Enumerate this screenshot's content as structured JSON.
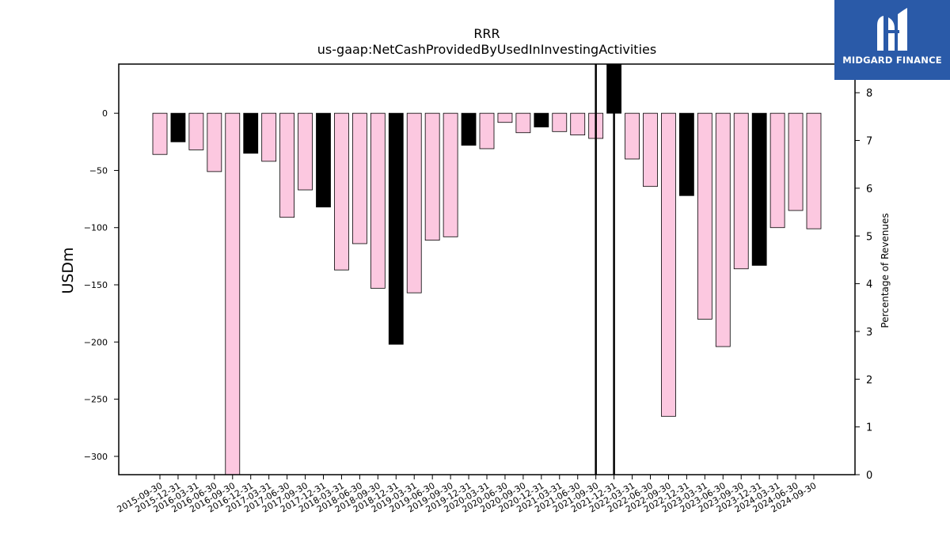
{
  "chart_data": {
    "type": "bar",
    "title": "RRR",
    "subtitle": "us-gaap:NetCashProvidedByUsedInInvestingActivities",
    "ylabel": "USDm",
    "y2label": "Percentage of Revenues",
    "ylim": [
      -316,
      43
    ],
    "y2lim": [
      0,
      8.6
    ],
    "yticks": [
      0,
      -50,
      -100,
      -150,
      -200,
      -250,
      -300
    ],
    "y2ticks": [
      0,
      1,
      2,
      3,
      4,
      5,
      6,
      7,
      8
    ],
    "categories": [
      "2015-09-30",
      "2015-12-31",
      "2016-03-31",
      "2016-06-30",
      "2016-09-30",
      "2016-12-31",
      "2017-03-31",
      "2017-06-30",
      "2017-09-30",
      "2017-12-31",
      "2018-03-31",
      "2018-06-30",
      "2018-09-30",
      "2018-12-31",
      "2019-03-31",
      "2019-06-30",
      "2019-09-30",
      "2019-12-31",
      "2020-03-31",
      "2020-06-30",
      "2020-09-30",
      "2020-12-31",
      "2021-03-31",
      "2021-06-30",
      "2021-09-30",
      "2021-12-31",
      "2022-03-31",
      "2022-06-30",
      "2022-09-30",
      "2022-12-31",
      "2023-03-31",
      "2023-06-30",
      "2023-09-30",
      "2023-12-31",
      "2024-03-31",
      "2024-06-30",
      "2024-09-30"
    ],
    "values": [
      -36,
      -25,
      -32,
      -51,
      -320,
      -35,
      -42,
      -91,
      -67,
      -82,
      -137,
      -114,
      -153,
      -202,
      -157,
      -111,
      -108,
      -28,
      -31,
      -8,
      -17,
      -12,
      -16,
      -19,
      -22,
      43,
      -40,
      -64,
      -265,
      -72,
      -180,
      -204,
      -136,
      -133,
      -100,
      -85,
      -101
    ],
    "highlight": [
      false,
      true,
      false,
      false,
      false,
      true,
      false,
      false,
      false,
      true,
      false,
      false,
      false,
      true,
      false,
      false,
      false,
      true,
      false,
      false,
      false,
      true,
      false,
      false,
      false,
      true,
      false,
      false,
      false,
      true,
      false,
      false,
      false,
      true,
      false,
      false,
      false
    ],
    "vlines": [
      "2021-09-30",
      "2021-12-31"
    ],
    "colors": {
      "normal": "#fcc8e0",
      "highlight": "#000000",
      "edge": "#000000"
    }
  },
  "brand": {
    "name": "MIDGARD FINANCE"
  }
}
